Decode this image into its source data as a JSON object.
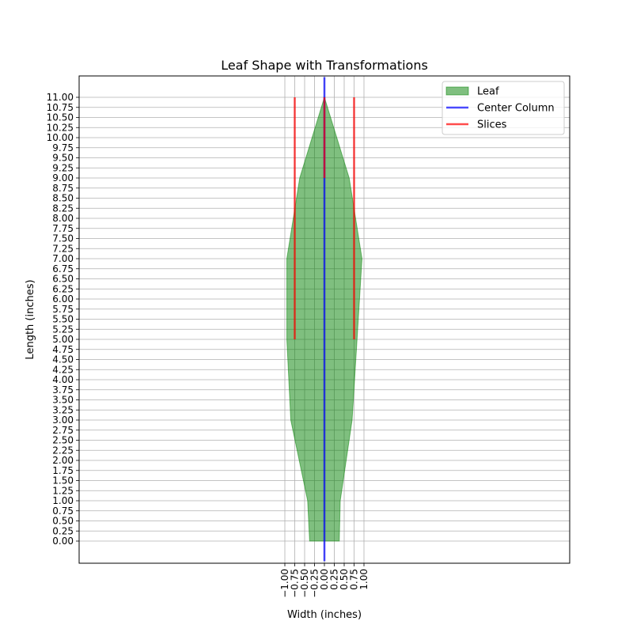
{
  "chart_data": {
    "type": "area",
    "title": "Leaf Shape with Transformations",
    "xlabel": "Width (inches)",
    "ylabel": "Length (inches)",
    "xlim": [
      -1.0,
      1.0
    ],
    "ylim": [
      0.0,
      11.0
    ],
    "xticks": [
      -1.0,
      -0.75,
      -0.5,
      -0.25,
      0.0,
      0.25,
      0.5,
      0.75,
      1.0
    ],
    "xtick_labels": [
      "−1.00",
      "−0.75",
      "−0.50",
      "−0.25",
      "0.00",
      "0.25",
      "0.50",
      "0.75",
      "1.00"
    ],
    "yticks": [
      0.0,
      0.25,
      0.5,
      0.75,
      1.0,
      1.25,
      1.5,
      1.75,
      2.0,
      2.25,
      2.5,
      2.75,
      3.0,
      3.25,
      3.5,
      3.75,
      4.0,
      4.25,
      4.5,
      4.75,
      5.0,
      5.25,
      5.5,
      5.75,
      6.0,
      6.25,
      6.5,
      6.75,
      7.0,
      7.25,
      7.5,
      7.75,
      8.0,
      8.25,
      8.5,
      8.75,
      9.0,
      9.25,
      9.5,
      9.75,
      10.0,
      10.25,
      10.5,
      10.75,
      11.0
    ],
    "ytick_labels": [
      "0.00",
      "0.25",
      "0.50",
      "0.75",
      "1.00",
      "1.25",
      "1.50",
      "1.75",
      "2.00",
      "2.25",
      "2.50",
      "2.75",
      "3.00",
      "3.25",
      "3.50",
      "3.75",
      "4.00",
      "4.25",
      "4.50",
      "4.75",
      "5.00",
      "5.25",
      "5.50",
      "5.75",
      "6.00",
      "6.25",
      "6.50",
      "6.75",
      "7.00",
      "7.25",
      "7.50",
      "7.75",
      "8.00",
      "8.25",
      "8.50",
      "8.75",
      "9.00",
      "9.25",
      "9.50",
      "9.75",
      "10.00",
      "10.25",
      "10.50",
      "10.75",
      "11.00"
    ],
    "grid": true,
    "legend_position": "top-right",
    "series": [
      {
        "name": "Leaf",
        "kind": "fill",
        "color": "#008000",
        "points": [
          [
            -0.375,
            0.0
          ],
          [
            0.375,
            0.0
          ],
          [
            0.4,
            1.0
          ],
          [
            0.7,
            3.0
          ],
          [
            0.95,
            7.0
          ],
          [
            0.625,
            9.0
          ],
          [
            0.0,
            11.0
          ],
          [
            -0.625,
            9.0
          ],
          [
            -0.95,
            7.0
          ],
          [
            -0.95,
            5.0
          ],
          [
            -0.85,
            3.0
          ],
          [
            -0.425,
            1.0
          ]
        ]
      },
      {
        "name": "Center Column",
        "kind": "line",
        "color": "#0000ff",
        "segments": [
          [
            [
              0.0,
              -0.5
            ],
            [
              0.0,
              11.5
            ]
          ]
        ]
      },
      {
        "name": "Slices",
        "kind": "line",
        "color": "#ff0000",
        "segments": [
          [
            [
              -0.75,
              5.0
            ],
            [
              -0.75,
              11.0
            ]
          ],
          [
            [
              0.75,
              5.0
            ],
            [
              0.75,
              11.0
            ]
          ],
          [
            [
              0.0,
              9.0
            ],
            [
              0.0,
              11.0
            ]
          ]
        ]
      }
    ]
  }
}
